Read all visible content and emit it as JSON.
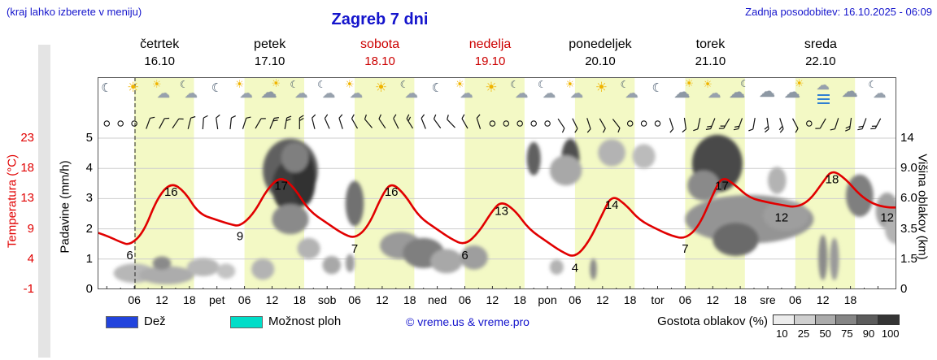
{
  "header": {
    "note": "(kraj lahko izberete v meniju)",
    "title": "Zagreb 7 dni",
    "updated": "Zadnja posodobitev: 16.10.2025 - 06:09"
  },
  "days": [
    {
      "name": "četrtek",
      "date": "16.10",
      "red": false
    },
    {
      "name": "petek",
      "date": "17.10",
      "red": false
    },
    {
      "name": "sobota",
      "date": "18.10",
      "red": true
    },
    {
      "name": "nedelja",
      "date": "19.10",
      "red": true
    },
    {
      "name": "ponedeljek",
      "date": "20.10",
      "red": false
    },
    {
      "name": "torek",
      "date": "21.10",
      "red": false
    },
    {
      "name": "sreda",
      "date": "22.10",
      "red": false
    }
  ],
  "axes": {
    "temp_label": "Temperatura (°C)",
    "temp_ticks": [
      "23",
      "18",
      "13",
      "9",
      "4",
      "-1"
    ],
    "precip_label": "Padavine (mm/h)",
    "precip_ticks": [
      "5",
      "4",
      "3",
      "2",
      "1",
      "0"
    ],
    "cloud_label": "Višina oblakov (km)",
    "cloud_ticks": [
      "14",
      "9.0",
      "6.0",
      "3.5",
      "1.5",
      "0"
    ]
  },
  "x_axis": {
    "ticks": [
      {
        "label": "06",
        "h": 6
      },
      {
        "label": "12",
        "h": 12
      },
      {
        "label": "18",
        "h": 18
      },
      {
        "label": "pet",
        "h": 24,
        "day": true
      },
      {
        "label": "06",
        "h": 30
      },
      {
        "label": "12",
        "h": 36
      },
      {
        "label": "18",
        "h": 42
      },
      {
        "label": "sob",
        "h": 48,
        "day": true
      },
      {
        "label": "06",
        "h": 54
      },
      {
        "label": "12",
        "h": 60
      },
      {
        "label": "18",
        "h": 66
      },
      {
        "label": "ned",
        "h": 72,
        "day": true
      },
      {
        "label": "06",
        "h": 78
      },
      {
        "label": "12",
        "h": 84
      },
      {
        "label": "18",
        "h": 90
      },
      {
        "label": "pon",
        "h": 96,
        "day": true
      },
      {
        "label": "06",
        "h": 102
      },
      {
        "label": "12",
        "h": 108
      },
      {
        "label": "18",
        "h": 114
      },
      {
        "label": "tor",
        "h": 120,
        "day": true
      },
      {
        "label": "06",
        "h": 126
      },
      {
        "label": "12",
        "h": 132
      },
      {
        "label": "18",
        "h": 138
      },
      {
        "label": "sre",
        "h": 144,
        "day": true
      },
      {
        "label": "06",
        "h": 150
      },
      {
        "label": "12",
        "h": 156
      },
      {
        "label": "18",
        "h": 162
      }
    ]
  },
  "now_h": 6.15,
  "icons": [
    [
      0,
      "moon"
    ],
    [
      6,
      "sun"
    ],
    [
      12,
      "sun-cloud"
    ],
    [
      18,
      "moon-cloud"
    ],
    [
      24,
      "moon"
    ],
    [
      30,
      "sun-cloud"
    ],
    [
      36,
      "cloud-sun"
    ],
    [
      42,
      "moon-cloud"
    ],
    [
      48,
      "moon-cloud"
    ],
    [
      54,
      "sun-cloud"
    ],
    [
      60,
      "sun"
    ],
    [
      66,
      "moon-cloud"
    ],
    [
      72,
      "moon"
    ],
    [
      78,
      "sun-cloud"
    ],
    [
      84,
      "sun"
    ],
    [
      90,
      "moon-cloud"
    ],
    [
      96,
      "moon-cloud"
    ],
    [
      102,
      "sun-cloud"
    ],
    [
      108,
      "sun"
    ],
    [
      114,
      "moon-cloud"
    ],
    [
      120,
      "moon"
    ],
    [
      126,
      "cloud-sun"
    ],
    [
      132,
      "sun-cloud"
    ],
    [
      138,
      "cloud-moon"
    ],
    [
      144,
      "cloud"
    ],
    [
      150,
      "cloud-sun"
    ],
    [
      156,
      "cloud-fog"
    ],
    [
      162,
      "cloud"
    ],
    [
      168,
      "moon-cloud"
    ]
  ],
  "wind_key": [
    "hour",
    "type(c=calm,b=barb)",
    "angle_deg",
    "feathers"
  ],
  "wind": [
    [
      0,
      "c",
      0,
      0
    ],
    [
      3,
      "c",
      0,
      0
    ],
    [
      6,
      "c",
      0,
      0
    ],
    [
      9,
      "b",
      20,
      1
    ],
    [
      12,
      "b",
      28,
      1
    ],
    [
      15,
      "b",
      34,
      1
    ],
    [
      18,
      "b",
      14,
      1
    ],
    [
      21,
      "b",
      4,
      1
    ],
    [
      24,
      "b",
      -8,
      1
    ],
    [
      27,
      "b",
      6,
      1
    ],
    [
      30,
      "b",
      18,
      1
    ],
    [
      33,
      "b",
      30,
      1
    ],
    [
      36,
      "b",
      22,
      2
    ],
    [
      39,
      "b",
      10,
      2
    ],
    [
      42,
      "b",
      0,
      2
    ],
    [
      45,
      "b",
      -14,
      1
    ],
    [
      48,
      "b",
      -24,
      1
    ],
    [
      51,
      "b",
      -18,
      1
    ],
    [
      54,
      "b",
      -30,
      1
    ],
    [
      57,
      "b",
      -40,
      1
    ],
    [
      60,
      "b",
      -34,
      1
    ],
    [
      63,
      "b",
      -26,
      1
    ],
    [
      66,
      "b",
      -32,
      2
    ],
    [
      69,
      "b",
      -22,
      1
    ],
    [
      72,
      "b",
      -36,
      1
    ],
    [
      75,
      "b",
      -44,
      1
    ],
    [
      78,
      "b",
      -30,
      1
    ],
    [
      81,
      "b",
      -18,
      1
    ],
    [
      84,
      "c",
      0,
      0
    ],
    [
      87,
      "c",
      0,
      0
    ],
    [
      90,
      "c",
      0,
      0
    ],
    [
      93,
      "c",
      0,
      0
    ],
    [
      96,
      "c",
      0,
      0
    ],
    [
      99,
      "b",
      146,
      1
    ],
    [
      102,
      "b",
      154,
      1
    ],
    [
      105,
      "b",
      162,
      1
    ],
    [
      108,
      "b",
      150,
      1
    ],
    [
      111,
      "b",
      142,
      1
    ],
    [
      114,
      "c",
      0,
      0
    ],
    [
      117,
      "c",
      0,
      0
    ],
    [
      120,
      "c",
      0,
      0
    ],
    [
      123,
      "b",
      162,
      1
    ],
    [
      126,
      "b",
      172,
      1
    ],
    [
      129,
      "b",
      -168,
      1
    ],
    [
      132,
      "b",
      -158,
      2
    ],
    [
      135,
      "b",
      -150,
      2
    ],
    [
      138,
      "b",
      -160,
      2
    ],
    [
      141,
      "b",
      -170,
      1
    ],
    [
      144,
      "b",
      172,
      2
    ],
    [
      147,
      "b",
      162,
      2
    ],
    [
      150,
      "b",
      152,
      1
    ],
    [
      153,
      "c",
      0,
      0
    ],
    [
      156,
      "b",
      -150,
      1
    ],
    [
      159,
      "b",
      -162,
      1
    ],
    [
      162,
      "b",
      -172,
      2
    ],
    [
      165,
      "b",
      -160,
      2
    ],
    [
      168,
      "b",
      -152,
      2
    ]
  ],
  "legend": {
    "rain_label": "Dež",
    "rain_color": "#2244dd",
    "showers_label": "Možnost ploh",
    "showers_color": "#00ddc8",
    "copyright": "© vreme.us & vreme.pro",
    "density_label": "Gostota oblakov (%)",
    "scale_labels": [
      "10",
      "25",
      "50",
      "75",
      "90",
      "100"
    ],
    "scale_colors": [
      "#ececec",
      "#cfcfcf",
      "#ababab",
      "#858585",
      "#5c5c5c",
      "#353535"
    ]
  },
  "chart_data": {
    "type": "line",
    "title": "Zagreb 7 dni",
    "x_axis": "ure po dnevih (06/12/18), 16.10 - 22.10, os = ure od 16.10 00:00",
    "y_axis_left_temperature_c": [
      -1,
      4,
      9,
      13,
      18,
      23
    ],
    "y_axis_left_precip_mm_h": [
      0,
      1,
      2,
      3,
      4,
      5
    ],
    "cloud_km_axis": [
      0,
      1.5,
      3.5,
      6,
      9,
      14
    ],
    "temp_color": "#e10000",
    "band_color": "#f3f9c5",
    "day_band_hours": [
      6,
      19
    ],
    "temperature_c": {
      "points": [
        [
          -2,
          8
        ],
        [
          0,
          7.5
        ],
        [
          3,
          6.5
        ],
        [
          5,
          6
        ],
        [
          8,
          8
        ],
        [
          11,
          13.5
        ],
        [
          14,
          16
        ],
        [
          17,
          14.5
        ],
        [
          20,
          11
        ],
        [
          24,
          10
        ],
        [
          27,
          9.3
        ],
        [
          29,
          9
        ],
        [
          32,
          11
        ],
        [
          35,
          15
        ],
        [
          38,
          17
        ],
        [
          41,
          15
        ],
        [
          44,
          11.5
        ],
        [
          48,
          9.5
        ],
        [
          51,
          8
        ],
        [
          54,
          7
        ],
        [
          57,
          9
        ],
        [
          60,
          14
        ],
        [
          62,
          16
        ],
        [
          65,
          14
        ],
        [
          68,
          10.5
        ],
        [
          72,
          8.5
        ],
        [
          75,
          7
        ],
        [
          78,
          6
        ],
        [
          81,
          8
        ],
        [
          84,
          11.5
        ],
        [
          86,
          13
        ],
        [
          89,
          11.5
        ],
        [
          92,
          8.5
        ],
        [
          96,
          6.5
        ],
        [
          99,
          5
        ],
        [
          102,
          4
        ],
        [
          105,
          6.5
        ],
        [
          108,
          11
        ],
        [
          110,
          14
        ],
        [
          113,
          12.5
        ],
        [
          116,
          10
        ],
        [
          120,
          8.5
        ],
        [
          123,
          7.5
        ],
        [
          126,
          7
        ],
        [
          129,
          9
        ],
        [
          132,
          14
        ],
        [
          134,
          17
        ],
        [
          137,
          15.5
        ],
        [
          140,
          13.5
        ],
        [
          144,
          12.8
        ],
        [
          147,
          12.4
        ],
        [
          150,
          12
        ],
        [
          153,
          13
        ],
        [
          156,
          16
        ],
        [
          158,
          18
        ],
        [
          161,
          16.5
        ],
        [
          164,
          14
        ],
        [
          167,
          12.5
        ],
        [
          170,
          12
        ],
        [
          172,
          12
        ]
      ],
      "labels": [
        [
          5,
          6
        ],
        [
          14,
          16
        ],
        [
          29,
          9
        ],
        [
          38,
          17
        ],
        [
          54,
          7
        ],
        [
          62,
          16
        ],
        [
          78,
          6
        ],
        [
          86,
          13
        ],
        [
          102,
          4
        ],
        [
          110,
          14
        ],
        [
          126,
          7
        ],
        [
          134,
          17
        ],
        [
          147,
          12
        ],
        [
          158,
          18
        ],
        [
          170,
          12
        ]
      ]
    },
    "clouds_key": [
      "hour",
      "km",
      "width_hours",
      "radius_axis_units",
      "density"
    ],
    "clouds": [
      [
        6,
        0.8,
        9,
        0.32,
        0.28
      ],
      [
        13,
        0.7,
        12,
        0.3,
        0.33
      ],
      [
        12,
        1.3,
        4,
        0.22,
        0.5
      ],
      [
        21,
        1.1,
        7,
        0.3,
        0.28
      ],
      [
        26,
        0.9,
        4,
        0.25,
        0.22
      ],
      [
        34,
        1.0,
        5,
        0.35,
        0.3
      ],
      [
        40,
        8.8,
        12,
        1.05,
        0.7
      ],
      [
        40,
        7.2,
        8,
        0.85,
        0.88
      ],
      [
        43,
        8.0,
        5,
        0.9,
        0.92
      ],
      [
        41,
        10.8,
        6,
        0.5,
        0.55
      ],
      [
        40,
        4.3,
        8,
        0.5,
        0.5
      ],
      [
        44,
        2.2,
        5,
        0.35,
        0.3
      ],
      [
        49,
        1.2,
        4,
        0.3,
        0.35
      ],
      [
        54,
        5.6,
        4,
        0.75,
        0.62
      ],
      [
        53,
        1.3,
        2,
        0.3,
        0.4
      ],
      [
        64,
        2.4,
        9,
        0.45,
        0.42
      ],
      [
        69,
        1.9,
        9,
        0.5,
        0.55
      ],
      [
        74,
        1.4,
        7,
        0.4,
        0.35
      ],
      [
        80,
        1.6,
        6,
        0.4,
        0.4
      ],
      [
        93,
        10.6,
        3,
        0.55,
        0.7
      ],
      [
        101,
        10.4,
        4,
        0.7,
        0.78
      ],
      [
        100,
        8.8,
        7,
        0.5,
        0.35
      ],
      [
        98,
        1.1,
        3,
        0.25,
        0.3
      ],
      [
        110,
        11.6,
        6,
        0.45,
        0.3
      ],
      [
        117,
        11,
        5,
        0.4,
        0.26
      ],
      [
        106,
        1,
        1.5,
        0.35,
        0.5
      ],
      [
        133,
        9.8,
        11,
        0.95,
        0.82
      ],
      [
        130,
        7.3,
        7,
        0.5,
        0.5
      ],
      [
        140,
        4.3,
        28,
        0.8,
        0.45
      ],
      [
        137,
        2.8,
        10,
        0.55,
        0.65
      ],
      [
        148,
        4.6,
        10,
        0.5,
        0.4
      ],
      [
        146,
        7.8,
        4,
        0.45,
        0.3
      ],
      [
        156,
        1.6,
        2,
        0.75,
        0.5
      ],
      [
        158.5,
        1.5,
        2,
        0.7,
        0.42
      ],
      [
        164,
        6.3,
        6,
        0.7,
        0.55
      ],
      [
        170,
        5,
        5,
        0.6,
        0.38
      ],
      [
        172,
        3.5,
        5,
        0.5,
        0.3
      ]
    ]
  }
}
